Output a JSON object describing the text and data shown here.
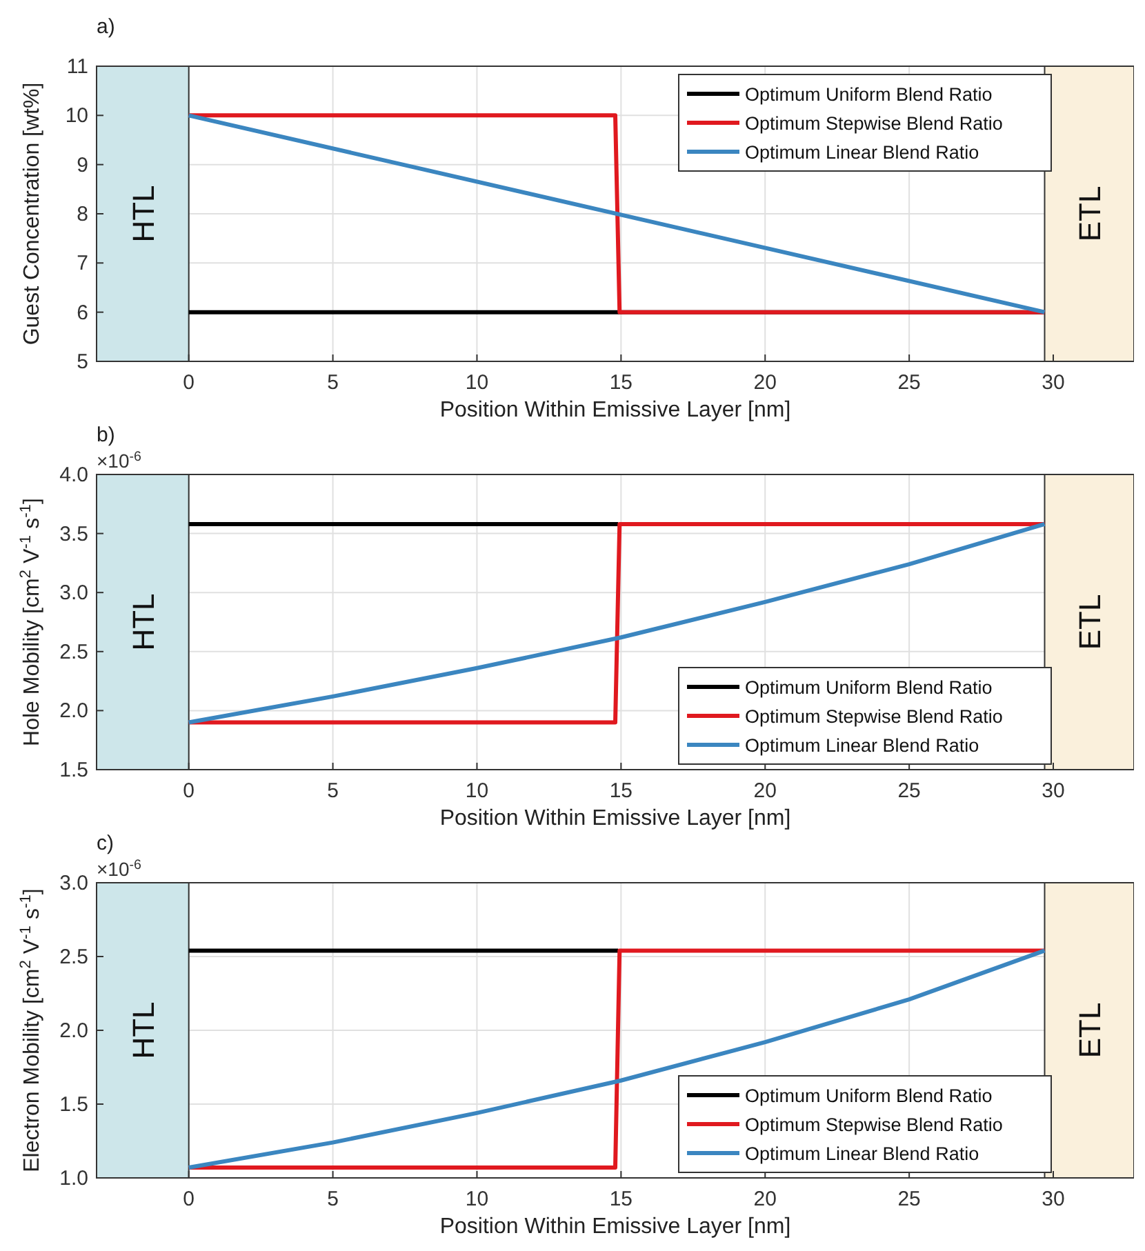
{
  "chart_data": [
    {
      "type": "line",
      "title": "a)",
      "xlabel": "Position Within Emissive Layer [nm]",
      "ylabel": "Guest Concentration [wt%]",
      "xlim": [
        -3.2,
        32.8
      ],
      "xticks": [
        0,
        5,
        10,
        15,
        20,
        25,
        30
      ],
      "ylim": [
        5,
        11
      ],
      "yticks": [
        5,
        6,
        7,
        8,
        9,
        10,
        11
      ],
      "grid": true,
      "legend": "top right",
      "line_style": "solid",
      "bands": [
        {
          "axis": "x",
          "from": -3.2,
          "to": 0,
          "label": "HTL",
          "color": "#cde6ea"
        },
        {
          "axis": "x",
          "from": 29.7,
          "to": 32.8,
          "label": "ETL",
          "color": "#faf0dc"
        }
      ],
      "series": [
        {
          "name": "Optimum Uniform Blend Ratio",
          "color": "#000000",
          "x": [
            0,
            29.7
          ],
          "values": [
            6,
            6
          ]
        },
        {
          "name": "Optimum Stepwise Blend Ratio",
          "color": "#e0191f",
          "x": [
            0,
            14.8,
            14.95,
            29.7
          ],
          "values": [
            10,
            10,
            6,
            6
          ]
        },
        {
          "name": "Optimum Linear Blend Ratio",
          "color": "#3b86c0",
          "x": [
            0,
            29.7
          ],
          "values": [
            10,
            6
          ]
        }
      ]
    },
    {
      "type": "line",
      "title": "b)",
      "xlabel": "Position Within Emissive Layer [nm]",
      "ylabel": "Hole Mobility [cm$^{2}$ V$^{-1}$ s$^{-1}$]",
      "annotations": [
        "×10$^{-6}$"
      ],
      "xlim": [
        -3.2,
        32.8
      ],
      "xticks": [
        0,
        5,
        10,
        15,
        20,
        25,
        30
      ],
      "ylim": [
        1.5,
        4
      ],
      "yticks": [
        {
          "value": 1.5,
          "label": "1.5"
        },
        {
          "value": 2,
          "label": "2.0"
        },
        {
          "value": 2.5,
          "label": "2.5"
        },
        {
          "value": 3,
          "label": "3.0"
        },
        {
          "value": 3.5,
          "label": "3.5"
        },
        {
          "value": 4,
          "label": "4.0"
        }
      ],
      "grid": true,
      "legend": "bottom right",
      "line_style": "solid",
      "bands": [
        {
          "axis": "x",
          "from": -3.2,
          "to": 0,
          "label": "HTL",
          "color": "#cde6ea"
        },
        {
          "axis": "x",
          "from": 29.7,
          "to": 32.8,
          "label": "ETL",
          "color": "#faf0dc"
        }
      ],
      "series": [
        {
          "name": "Optimum Uniform Blend Ratio",
          "color": "#000000",
          "x": [
            0,
            14.9
          ],
          "values": [
            3.58,
            3.58
          ]
        },
        {
          "name": "Optimum Stepwise Blend Ratio",
          "color": "#e0191f",
          "x": [
            0,
            14.8,
            14.95,
            29.7
          ],
          "values": [
            1.9,
            1.9,
            3.58,
            3.58
          ]
        },
        {
          "name": "Optimum Linear Blend Ratio",
          "color": "#3b86c0",
          "x": [
            0,
            5,
            10,
            15,
            20,
            25,
            29.7
          ],
          "values": [
            1.9,
            2.12,
            2.36,
            2.62,
            2.92,
            3.24,
            3.58
          ]
        }
      ]
    },
    {
      "type": "line",
      "title": "c)",
      "xlabel": "Position Within Emissive Layer [nm]",
      "ylabel": "Electron Mobility [cm$^{2}$ V$^{-1}$ s$^{-1}$]",
      "annotations": [
        "×10$^{-6}$"
      ],
      "xlim": [
        -3.2,
        32.8
      ],
      "xticks": [
        0,
        5,
        10,
        15,
        20,
        25,
        30
      ],
      "ylim": [
        1,
        3
      ],
      "yticks": [
        {
          "value": 1,
          "label": "1.0"
        },
        {
          "value": 1.5,
          "label": "1.5"
        },
        {
          "value": 2,
          "label": "2.0"
        },
        {
          "value": 2.5,
          "label": "2.5"
        },
        {
          "value": 3,
          "label": "3.0"
        }
      ],
      "grid": true,
      "legend": "bottom right",
      "line_style": "solid",
      "bands": [
        {
          "axis": "x",
          "from": -3.2,
          "to": 0,
          "label": "HTL",
          "color": "#cde6ea"
        },
        {
          "axis": "x",
          "from": 29.7,
          "to": 32.8,
          "label": "ETL",
          "color": "#faf0dc"
        }
      ],
      "series": [
        {
          "name": "Optimum Uniform Blend Ratio",
          "color": "#000000",
          "x": [
            0,
            14.9
          ],
          "values": [
            2.54,
            2.54
          ]
        },
        {
          "name": "Optimum Stepwise Blend Ratio",
          "color": "#e0191f",
          "x": [
            0,
            14.8,
            14.95,
            29.7
          ],
          "values": [
            1.07,
            1.07,
            2.54,
            2.54
          ]
        },
        {
          "name": "Optimum Linear Blend Ratio",
          "color": "#3b86c0",
          "x": [
            0,
            5,
            10,
            15,
            20,
            25,
            29.7
          ],
          "values": [
            1.07,
            1.24,
            1.44,
            1.66,
            1.92,
            2.21,
            2.54
          ]
        }
      ]
    }
  ]
}
